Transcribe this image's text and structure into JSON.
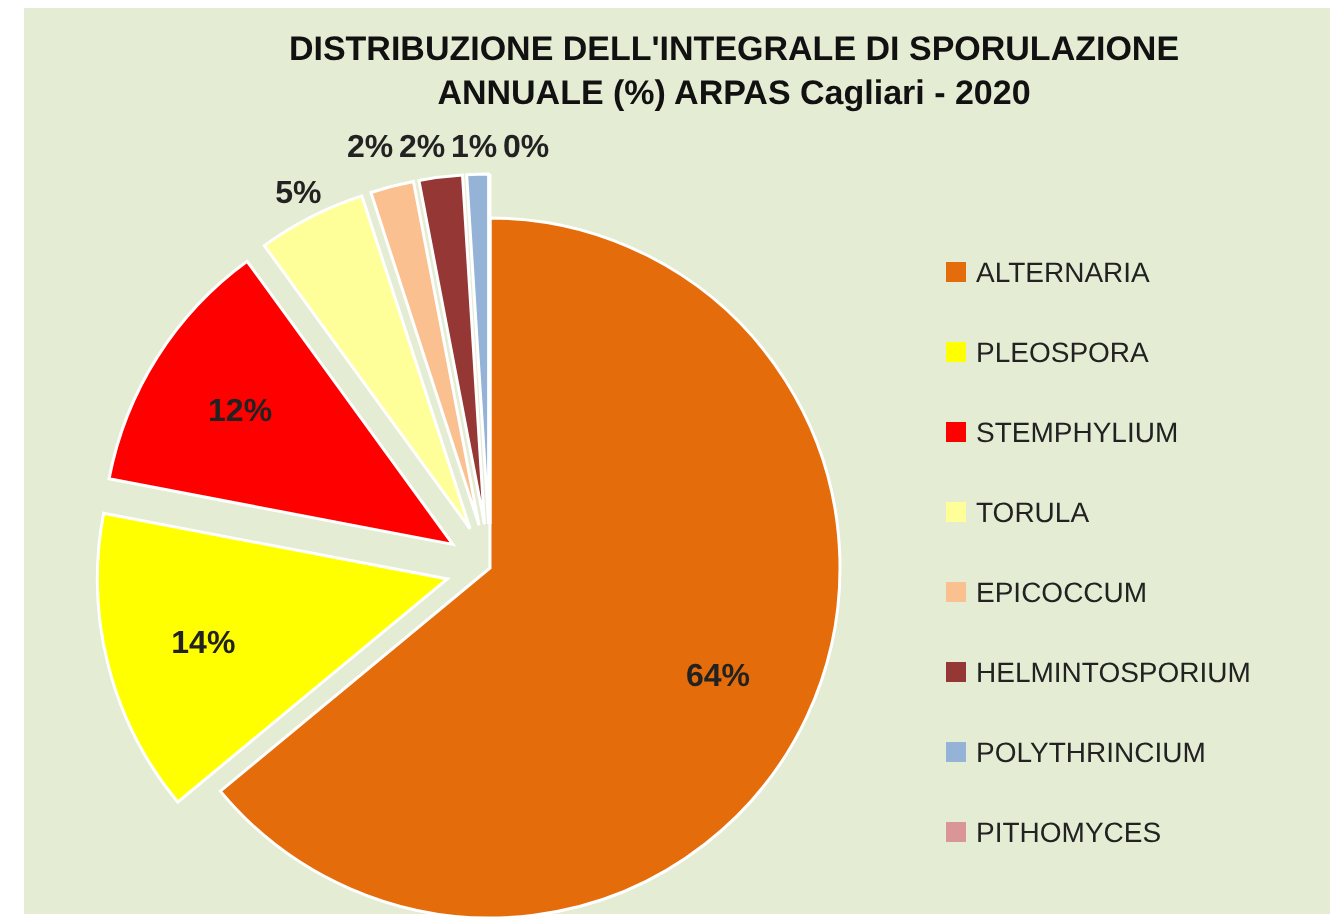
{
  "chart_data": {
    "type": "pie",
    "title": "DISTRIBUZIONE DELL'INTEGRALE DI SPORULAZIONE ANNUALE (%) ARPAS Cagliari - 2020",
    "categories": [
      "ALTERNARIA",
      "PLEOSPORA",
      "STEMPHYLIUM",
      "TORULA",
      "EPICOCCUM",
      "HELMINTOSPORIUM",
      "POLYTHRINCIUM",
      "PITHOMYCES"
    ],
    "values": [
      64,
      14,
      12,
      5,
      2,
      2,
      1,
      0
    ],
    "value_labels": [
      "64%",
      "14%",
      "12%",
      "5%",
      "2%",
      "2%",
      "1%",
      "0%"
    ],
    "colors": [
      "#e46c0a",
      "#ffff00",
      "#ff0000",
      "#ffff99",
      "#fac090",
      "#953735",
      "#95b3d7",
      "#d99694"
    ],
    "legend": "right"
  }
}
